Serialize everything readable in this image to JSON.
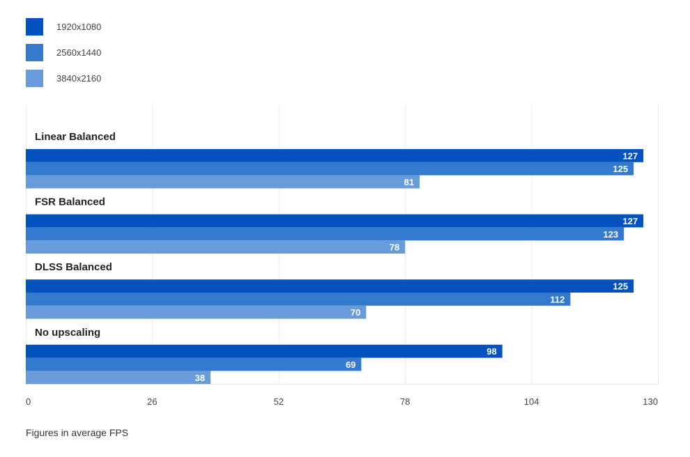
{
  "legend": {
    "items": [
      {
        "label": "1920x1080",
        "color": "#0352C0"
      },
      {
        "label": "2560x1440",
        "color": "#3379CE"
      },
      {
        "label": "3840x2160",
        "color": "#689BDA"
      }
    ]
  },
  "footnote": "Figures in average FPS",
  "chart_data": {
    "type": "bar",
    "orientation": "horizontal",
    "categories": [
      "Linear Balanced",
      "FSR Balanced",
      "DLSS Balanced",
      "No upscaling"
    ],
    "series": [
      {
        "name": "1920x1080",
        "color": "#0352C0",
        "values": [
          127,
          127,
          125,
          98
        ]
      },
      {
        "name": "2560x1440",
        "color": "#3379CE",
        "values": [
          125,
          123,
          112,
          69
        ]
      },
      {
        "name": "3840x2160",
        "color": "#689BDA",
        "values": [
          81,
          78,
          70,
          38
        ]
      }
    ],
    "xlim": [
      0,
      130
    ],
    "xticks": [
      0,
      26,
      52,
      78,
      104,
      130
    ],
    "grid": true,
    "legend_position": "top-left"
  }
}
